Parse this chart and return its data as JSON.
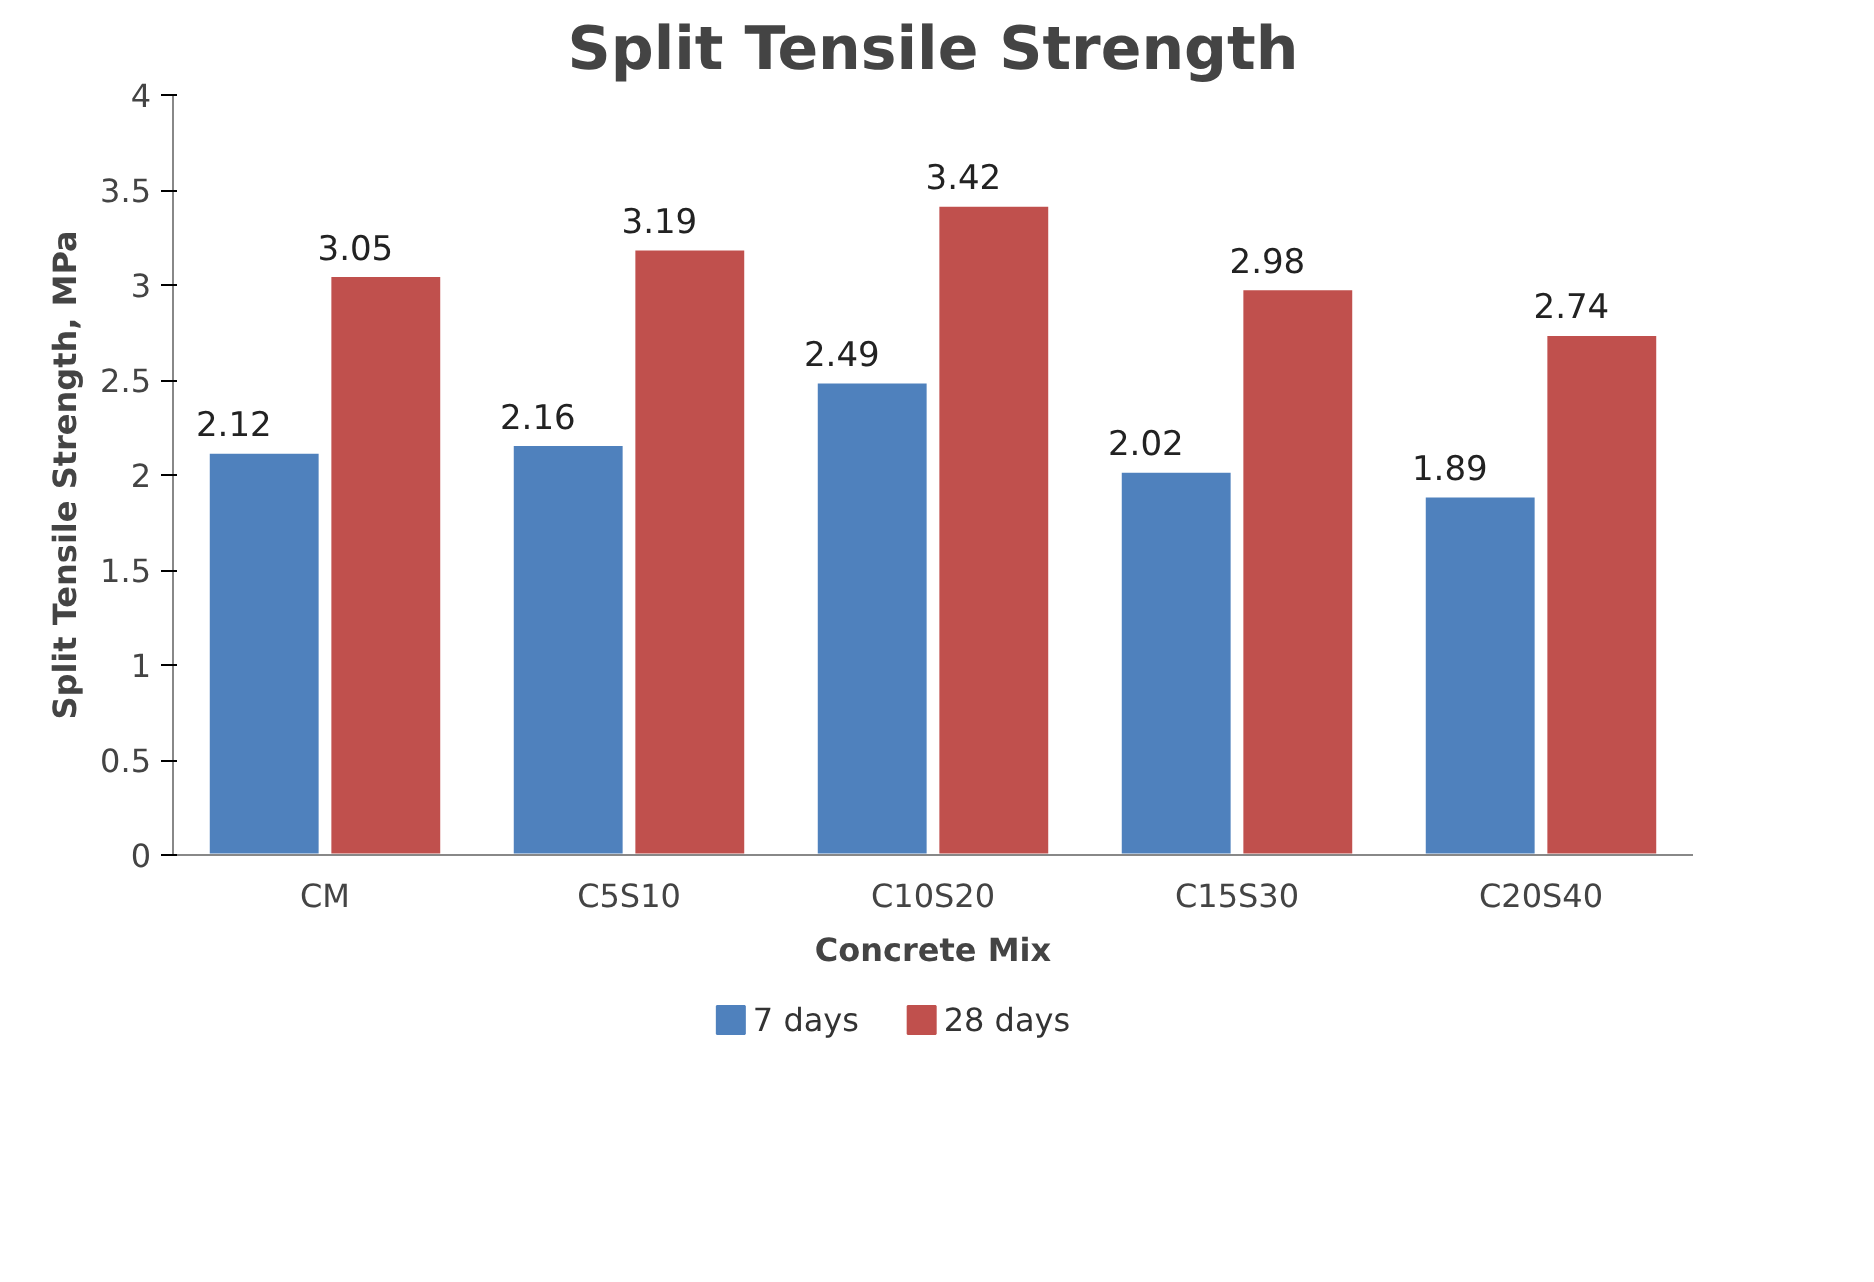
{
  "chart_data": {
    "type": "bar",
    "title": "Split Tensile Strength",
    "xlabel": "Concrete Mix",
    "ylabel": "Split Tensile Strength, MPa",
    "categories": [
      "CM",
      "C5S10",
      "C10S20",
      "C15S30",
      "C20S40"
    ],
    "series": [
      {
        "name": "7 days",
        "color": "#4f81bd",
        "values": [
          2.12,
          2.16,
          2.49,
          2.02,
          1.89
        ]
      },
      {
        "name": "28 days",
        "color": "#c0504d",
        "values": [
          3.05,
          3.19,
          3.42,
          2.98,
          2.74
        ]
      }
    ],
    "ylim": [
      0,
      4
    ],
    "yticks": [
      0,
      0.5,
      1,
      1.5,
      2,
      2.5,
      3,
      3.5,
      4
    ],
    "data_labels": true,
    "legend": "bottom",
    "grid": false
  }
}
